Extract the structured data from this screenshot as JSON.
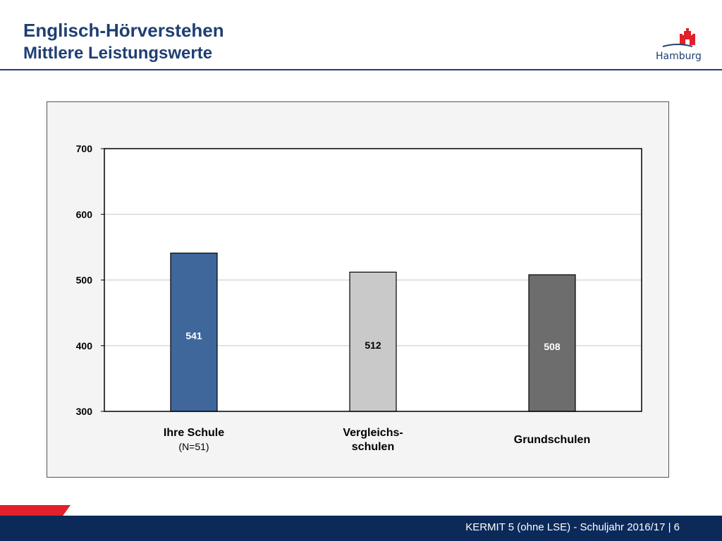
{
  "header": {
    "title": "Englisch-Hörverstehen",
    "subtitle": "Mittlere Leistungswerte",
    "logo_text": "Hamburg",
    "logo_icon": "hamburg-castle-icon"
  },
  "footer": {
    "text": "KERMIT 5 (ohne LSE) - Schuljahr 2016/17 | 6",
    "bar_color": "#0b2a5a",
    "accent_color": "#e0202a"
  },
  "chart_data": {
    "type": "bar",
    "title": "",
    "xlabel": "",
    "ylabel": "",
    "ylim": [
      300,
      700
    ],
    "yticks": [
      300,
      400,
      500,
      600,
      700
    ],
    "grid": true,
    "categories": [
      {
        "label_lines": [
          "Ihre Schule"
        ],
        "sublabel": "(N=51)"
      },
      {
        "label_lines": [
          "Vergleichs-",
          "schulen"
        ],
        "sublabel": ""
      },
      {
        "label_lines": [
          "Grundschulen"
        ],
        "sublabel": ""
      }
    ],
    "values": [
      541,
      512,
      508
    ],
    "value_labels": [
      "541",
      "512",
      "508"
    ],
    "colors": [
      "#3f679c",
      "#c9c9c9",
      "#6d6d6d"
    ],
    "label_colors": [
      "#ffffff",
      "#000000",
      "#ffffff"
    ]
  }
}
